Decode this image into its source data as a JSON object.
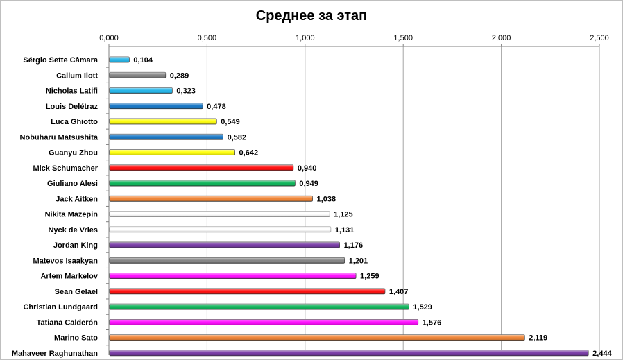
{
  "chart_data": {
    "type": "bar",
    "orientation": "horizontal",
    "title": "Среднее за этап",
    "xlim": [
      0,
      2.5
    ],
    "x_ticks": [
      "0,000",
      "0,500",
      "1,000",
      "1,500",
      "2,000",
      "2,500"
    ],
    "x_axis_position": "top",
    "grid": true,
    "legend": "none",
    "categories": [
      "Sérgio Sette Câmara",
      "Callum Ilott",
      "Nicholas Latifi",
      "Louis Delétraz",
      "Luca Ghiotto",
      "Nobuharu Matsushita",
      "Guanyu Zhou",
      "Mick Schumacher",
      "Giuliano Alesi",
      "Jack Aitken",
      "Nikita Mazepin",
      "Nyck de Vries",
      "Jordan King",
      "Matevos Isaakyan",
      "Artem Markelov",
      "Sean Gelael",
      "Christian Lundgaard",
      "Tatiana Calderón",
      "Marino Sato",
      "Mahaveer Raghunathan"
    ],
    "values": [
      0.104,
      0.289,
      0.323,
      0.478,
      0.549,
      0.582,
      0.642,
      0.94,
      0.949,
      1.038,
      1.125,
      1.131,
      1.176,
      1.201,
      1.259,
      1.407,
      1.529,
      1.576,
      2.119,
      2.444
    ],
    "value_labels": [
      "0,104",
      "0,289",
      "0,323",
      "0,478",
      "0,549",
      "0,582",
      "0,642",
      "0,940",
      "0,949",
      "1,038",
      "1,125",
      "1,131",
      "1,176",
      "1,201",
      "1,259",
      "1,407",
      "1,529",
      "1,576",
      "2,119",
      "2,444"
    ],
    "colors": [
      "#1ab2e8",
      "#7f7f7f",
      "#1ab2e8",
      "#0a6fc2",
      "#ffff00",
      "#0a6fc2",
      "#ffff00",
      "#ff0000",
      "#00b050",
      "#f07f2c",
      "#ffffff",
      "#ffffff",
      "#7030a0",
      "#7f7f7f",
      "#ff00ff",
      "#ff0000",
      "#00b050",
      "#ff00ff",
      "#f07f2c",
      "#7030a0"
    ]
  }
}
